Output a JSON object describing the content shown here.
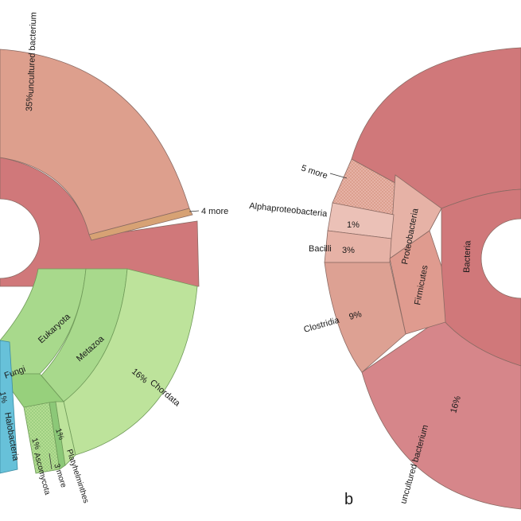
{
  "chart_data": [
    {
      "type": "sunburst",
      "panel": "a",
      "segments": [
        {
          "name": "uncultured bacterium",
          "percent": 35,
          "label": "35%"
        },
        {
          "name": "4 more"
        },
        {
          "name": "Eukaryota"
        },
        {
          "name": "Metazoa"
        },
        {
          "name": "Chordata",
          "percent": 16,
          "label": "16%"
        },
        {
          "name": "Fungi"
        },
        {
          "name": "Ascomycota",
          "percent": 1,
          "label": "1%"
        },
        {
          "name": "Platyhelminthes",
          "percent": 1,
          "label": "1%"
        },
        {
          "name": "3 more"
        },
        {
          "name": "Halobacteria",
          "percent": 1,
          "label": "1%"
        }
      ]
    },
    {
      "type": "sunburst",
      "panel": "b",
      "segments": [
        {
          "name": "Bacteria"
        },
        {
          "name": "Proteobacteria"
        },
        {
          "name": "Firmicutes"
        },
        {
          "name": "5 more"
        },
        {
          "name": "Alphaproteobacteria",
          "percent": 1,
          "label": "1%"
        },
        {
          "name": "Bacilli",
          "percent": 3,
          "label": "3%"
        },
        {
          "name": "Clostridia",
          "percent": 9,
          "label": "9%"
        },
        {
          "name": "uncultured bacterium",
          "percent": 16,
          "label": "16%"
        }
      ]
    }
  ],
  "panel_labels": {
    "b": "b"
  },
  "colors": {
    "bacteria_dark": "#d0787a",
    "uncultured_a": "#dd9f8d",
    "more_a": "#d7a274",
    "uncultured_b": "#d6868a",
    "pale_pink": "#ebc1b7",
    "pale_pink2": "#e6b2a6",
    "mid_pink": "#dda193",
    "firmicutes": "#df9b8f",
    "green_light": "#bde39b",
    "green_mid": "#a8d98c",
    "green_dark": "#97d07c",
    "green_deep": "#8cc878",
    "blue": "#67c1d9"
  }
}
